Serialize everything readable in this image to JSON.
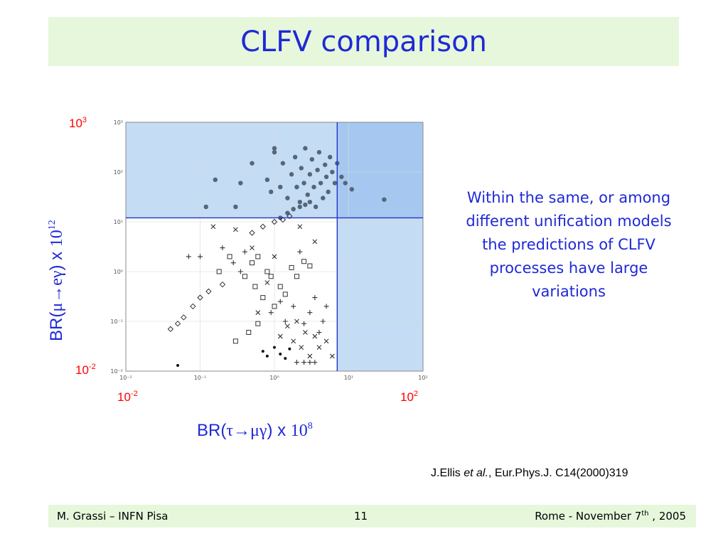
{
  "slide": {
    "title": "CLFV comparison",
    "note": "Within the same, or among different unification models the predictions of CLFV processes have large variations",
    "citation": {
      "authors": "J.Ellis",
      "etal": "et al.",
      "ref": "Eur.Phys.J. C14(2000)319"
    },
    "footer": {
      "left": "M. Grassi – INFN Pisa",
      "center": "11",
      "right_pre": "Rome -  November 7",
      "right_sup": "th",
      "right_post": " , 2005"
    }
  },
  "labels": {
    "y_top_base": "10",
    "y_top_exp": "3",
    "y_bot_base": "10",
    "y_bot_exp": "-2",
    "x_left_base": "10",
    "x_left_exp": "-2",
    "x_right_base": "10",
    "x_right_exp": "2",
    "ylabel_pre": "BR(",
    "ylabel_proc": "μ→eγ",
    "ylabel_mid": ") x ",
    "ylabel_pow": "10",
    "ylabel_exp": "12",
    "xlabel_pre": "BR(",
    "xlabel_proc": "τ→μγ",
    "xlabel_mid": ") x ",
    "xlabel_pow": "10",
    "xlabel_exp": "8"
  },
  "chart_data": {
    "type": "scatter",
    "title": "",
    "xlabel": "BR(τ→μγ) x 10^8",
    "ylabel": "BR(μ→eγ) x 10^12",
    "x_scale": "log",
    "y_scale": "log",
    "xlim": [
      0.01,
      100
    ],
    "ylim": [
      0.01,
      1000
    ],
    "xticks": [
      "10⁻²",
      "10⁻¹",
      "10⁰",
      "10¹",
      "10²"
    ],
    "yticks": [
      "10⁻²",
      "10⁻¹",
      "10⁰",
      "10¹",
      "10²",
      "10³"
    ],
    "grid": true,
    "colors": {
      "shade_light": "#c4dcf4",
      "shade_dark": "#a6c8f0",
      "limit_line": "#2233cc",
      "points": "#333333",
      "dots": "#556677"
    },
    "limits": {
      "x": 7,
      "y": 12
    },
    "series": [
      {
        "marker": "circle",
        "points": [
          [
            0.12,
            20
          ],
          [
            0.16,
            70
          ],
          [
            0.3,
            20
          ],
          [
            0.35,
            60
          ],
          [
            0.5,
            150
          ],
          [
            0.8,
            70
          ],
          [
            1.0,
            300
          ],
          [
            1.2,
            50
          ],
          [
            1.3,
            150
          ],
          [
            1.5,
            30
          ],
          [
            1.7,
            90
          ],
          [
            1.9,
            200
          ],
          [
            2.0,
            50
          ],
          [
            2.2,
            25
          ],
          [
            2.3,
            120
          ],
          [
            2.5,
            60
          ],
          [
            2.6,
            300
          ],
          [
            2.8,
            35
          ],
          [
            3.0,
            90
          ],
          [
            3.2,
            180
          ],
          [
            3.4,
            50
          ],
          [
            3.6,
            20
          ],
          [
            3.8,
            110
          ],
          [
            4.0,
            250
          ],
          [
            4.2,
            60
          ],
          [
            4.5,
            30
          ],
          [
            4.8,
            140
          ],
          [
            5.0,
            80
          ],
          [
            5.3,
            40
          ],
          [
            5.6,
            200
          ],
          [
            6.0,
            100
          ],
          [
            6.5,
            60
          ],
          [
            7.0,
            150
          ],
          [
            8.0,
            80
          ],
          [
            9.0,
            60
          ],
          [
            11.0,
            45
          ],
          [
            30.0,
            28
          ],
          [
            1.2,
            12
          ],
          [
            1.5,
            15
          ],
          [
            1.8,
            18
          ],
          [
            2.2,
            20
          ],
          [
            2.6,
            22
          ],
          [
            3.0,
            25
          ],
          [
            1.0,
            250
          ],
          [
            0.9,
            40
          ]
        ]
      },
      {
        "marker": "diamond",
        "points": [
          [
            0.04,
            0.07
          ],
          [
            0.05,
            0.09
          ],
          [
            0.06,
            0.12
          ],
          [
            0.08,
            0.2
          ],
          [
            0.1,
            0.3
          ],
          [
            0.13,
            0.4
          ],
          [
            0.2,
            0.55
          ],
          [
            0.5,
            6
          ],
          [
            0.7,
            8
          ],
          [
            1.0,
            10
          ],
          [
            1.3,
            11
          ],
          [
            1.6,
            13
          ]
        ]
      },
      {
        "marker": "square",
        "points": [
          [
            0.18,
            1
          ],
          [
            0.25,
            2
          ],
          [
            0.4,
            0.8
          ],
          [
            0.5,
            1.5
          ],
          [
            0.55,
            0.5
          ],
          [
            0.6,
            2
          ],
          [
            0.7,
            0.3
          ],
          [
            0.8,
            1
          ],
          [
            0.9,
            0.8
          ],
          [
            1.0,
            0.2
          ],
          [
            1.2,
            0.5
          ],
          [
            1.4,
            0.35
          ],
          [
            1.7,
            1.2
          ],
          [
            2.0,
            0.8
          ],
          [
            2.5,
            1.6
          ],
          [
            3.0,
            1.3
          ],
          [
            0.3,
            0.04
          ],
          [
            0.45,
            0.06
          ],
          [
            0.6,
            0.09
          ]
        ]
      },
      {
        "marker": "plus",
        "points": [
          [
            0.07,
            2
          ],
          [
            0.1,
            2
          ],
          [
            0.2,
            3
          ],
          [
            0.28,
            1.5
          ],
          [
            0.35,
            1
          ],
          [
            0.4,
            2.5
          ],
          [
            0.9,
            0.15
          ],
          [
            1.2,
            0.25
          ],
          [
            1.4,
            0.1
          ],
          [
            1.8,
            0.2
          ],
          [
            2.2,
            2.5
          ],
          [
            2.5,
            0.09
          ],
          [
            3.0,
            0.15
          ],
          [
            3.5,
            0.3
          ],
          [
            4.0,
            0.06
          ],
          [
            4.5,
            0.1
          ],
          [
            5.0,
            0.2
          ],
          [
            2.0,
            0.015
          ],
          [
            2.5,
            0.015
          ],
          [
            3.0,
            0.015
          ],
          [
            3.5,
            0.015
          ]
        ]
      },
      {
        "marker": "cross",
        "points": [
          [
            0.15,
            8
          ],
          [
            0.3,
            7
          ],
          [
            0.5,
            3
          ],
          [
            0.6,
            0.15
          ],
          [
            0.8,
            0.6
          ],
          [
            1.0,
            2
          ],
          [
            1.2,
            0.05
          ],
          [
            1.5,
            0.08
          ],
          [
            1.8,
            0.04
          ],
          [
            2.0,
            0.1
          ],
          [
            2.3,
            0.03
          ],
          [
            2.6,
            0.06
          ],
          [
            3.0,
            0.02
          ],
          [
            3.5,
            0.05
          ],
          [
            4.0,
            0.03
          ],
          [
            5.0,
            0.04
          ],
          [
            6.0,
            0.02
          ],
          [
            2.2,
            8
          ],
          [
            3.5,
            4
          ]
        ]
      },
      {
        "marker": "dot",
        "points": [
          [
            0.7,
            0.025
          ],
          [
            0.8,
            0.02
          ],
          [
            1.0,
            0.03
          ],
          [
            1.2,
            0.022
          ],
          [
            1.4,
            0.018
          ],
          [
            1.6,
            0.028
          ],
          [
            0.05,
            0.013
          ]
        ]
      }
    ]
  }
}
